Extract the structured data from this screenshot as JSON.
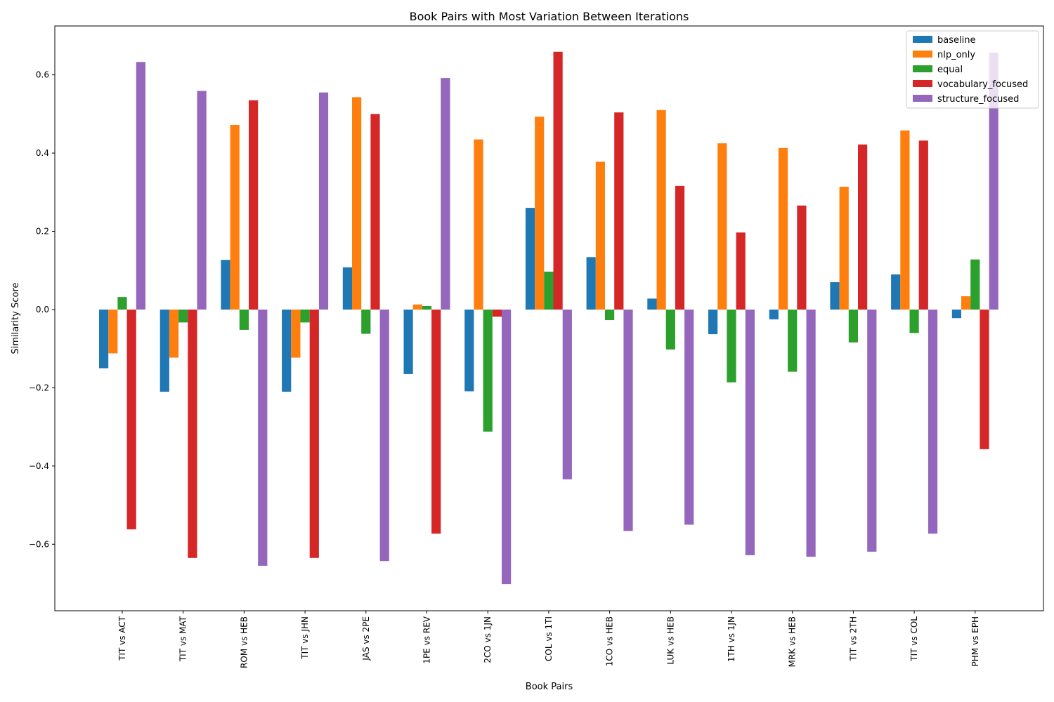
{
  "chart_data": {
    "type": "bar",
    "title": "Book Pairs with Most Variation Between Iterations",
    "xlabel": "Book Pairs",
    "ylabel": "Similarity Score",
    "ylim": [
      -0.77,
      0.725
    ],
    "yticks": [
      -0.6,
      -0.4,
      -0.2,
      0.0,
      0.2,
      0.4,
      0.6
    ],
    "ytick_labels": [
      "−0.6",
      "−0.4",
      "−0.2",
      "0.0",
      "0.2",
      "0.4",
      "0.6"
    ],
    "grid": false,
    "legend_position": "top-right",
    "categories": [
      "TIT vs ACT",
      "TIT vs MAT",
      "ROM vs HEB",
      "TIT vs JHN",
      "JAS vs 2PE",
      "1PE vs REV",
      "2CO vs 1JN",
      "COL vs 1TI",
      "1CO vs HEB",
      "LUK vs HEB",
      "1TH vs 1JN",
      "MRK vs HEB",
      "TIT vs 2TH",
      "TIT vs COL",
      "PHM vs EPH"
    ],
    "series": [
      {
        "name": "baseline",
        "color": "#1f77b4",
        "values": [
          -0.15,
          -0.21,
          0.127,
          -0.21,
          0.108,
          -0.165,
          -0.209,
          0.26,
          0.134,
          0.028,
          -0.063,
          -0.025,
          0.07,
          0.09,
          -0.022
        ]
      },
      {
        "name": "nlp_only",
        "color": "#ff7f0e",
        "values": [
          -0.112,
          -0.123,
          0.472,
          -0.123,
          0.543,
          0.013,
          0.435,
          0.493,
          0.378,
          0.51,
          0.425,
          0.413,
          0.314,
          0.458,
          0.034
        ]
      },
      {
        "name": "equal",
        "color": "#2ca02c",
        "values": [
          0.032,
          -0.033,
          -0.052,
          -0.033,
          -0.062,
          0.009,
          -0.312,
          0.097,
          -0.027,
          -0.102,
          -0.186,
          -0.159,
          -0.084,
          -0.06,
          0.128
        ]
      },
      {
        "name": "vocabulary_focused",
        "color": "#d62728",
        "values": [
          -0.562,
          -0.635,
          0.535,
          -0.635,
          0.5,
          -0.573,
          -0.018,
          0.659,
          0.504,
          0.316,
          0.197,
          0.266,
          0.422,
          0.432,
          -0.357
        ]
      },
      {
        "name": "structure_focused",
        "color": "#9467bd",
        "values": [
          0.633,
          0.559,
          -0.655,
          0.555,
          -0.643,
          0.592,
          -0.702,
          -0.434,
          -0.566,
          -0.55,
          -0.628,
          -0.632,
          -0.619,
          -0.573,
          0.657
        ]
      }
    ]
  }
}
